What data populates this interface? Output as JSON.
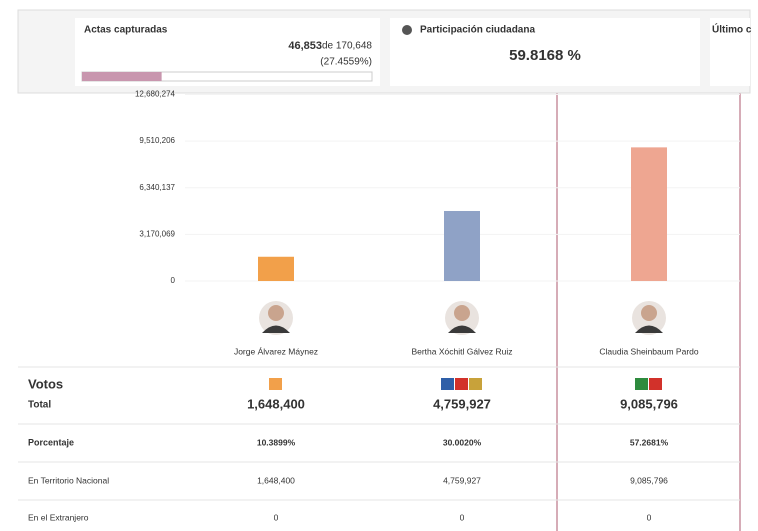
{
  "header": {
    "actas": {
      "title": "Actas capturadas",
      "captured": "46,853",
      "of_text": "de 170,648",
      "percent_label": "(27.4559%)",
      "progress": 27.4559
    },
    "participacion": {
      "title": "Participación ciudadana",
      "value": "59.8168 %"
    },
    "ultimo": {
      "title": "Último c"
    }
  },
  "chart_data": {
    "type": "bar",
    "categories": [
      "Jorge Álvarez Máynez",
      "Bertha Xóchitl Gálvez Ruiz",
      "Claudia Sheinbaum Pardo"
    ],
    "values": [
      1648400,
      4759927,
      9085796
    ],
    "value_labels": [
      "1,648,400",
      "4,759,927",
      "9,085,796"
    ],
    "colors": [
      "#f2a04a",
      "#8fa2c6",
      "#eea691"
    ],
    "ylim": [
      0,
      12680274
    ],
    "yticks": [
      0,
      {
        "value": 3170069,
        "label": "3,170,069"
      },
      {
        "value": 6340137,
        "label": "6,340,137"
      },
      {
        "value": 9510206,
        "label": "9,510,206"
      },
      {
        "value": 12680274,
        "label": "12,680,274"
      }
    ],
    "grid": true
  },
  "table": {
    "votos_label": "Votos",
    "total_label": "Total",
    "rows": [
      [
        "Porcentaje",
        "10.3899%",
        "30.0020%",
        "57.2681%"
      ],
      [
        "En Territorio Nacional",
        "1,648,400",
        "4,759,927",
        "9,085,796"
      ],
      [
        "En el Extranjero",
        "0",
        "0",
        "0"
      ]
    ]
  }
}
